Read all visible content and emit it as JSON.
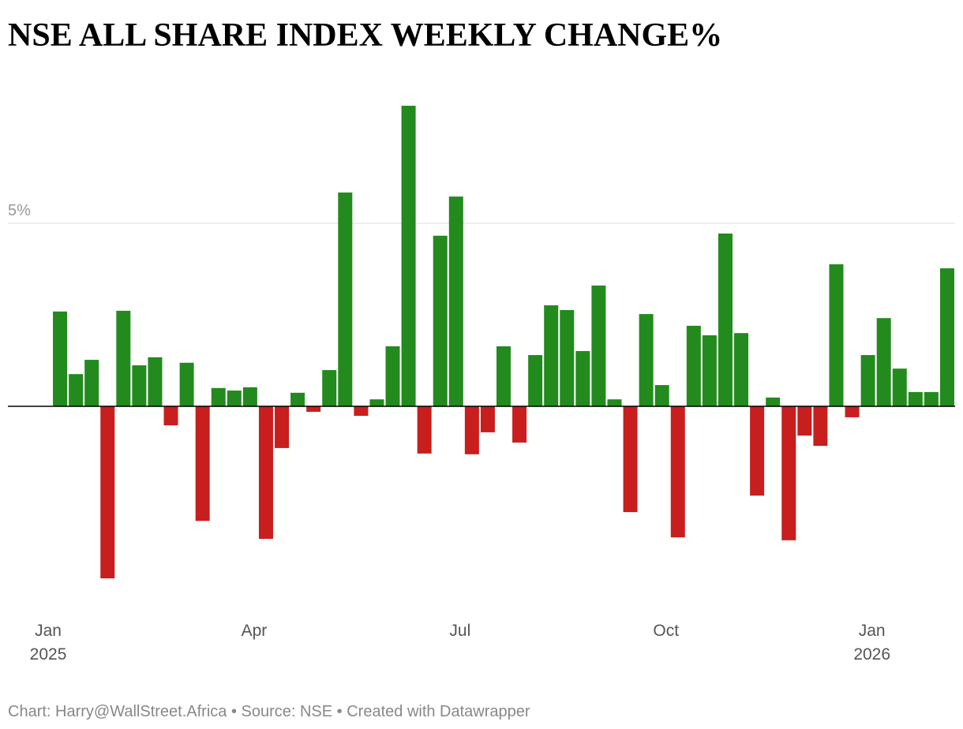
{
  "chart_data": {
    "type": "bar",
    "title": "NSE ALL SHARE INDEX  WEEKLY CHANGE%",
    "footer": "Chart: Harry@WallStreet.Africa • Source: NSE • Created with Datawrapper",
    "categories": [
      "Jan 2025",
      null,
      null,
      null,
      null,
      null,
      null,
      null,
      null,
      null,
      null,
      null,
      null,
      "Apr",
      null,
      null,
      null,
      null,
      null,
      null,
      null,
      null,
      null,
      null,
      null,
      null,
      "Jul",
      null,
      null,
      null,
      null,
      null,
      null,
      null,
      null,
      null,
      null,
      null,
      null,
      "Oct",
      null,
      null,
      null,
      null,
      null,
      null,
      null,
      null,
      null,
      null,
      null,
      null,
      "Jan 2026",
      null,
      null,
      null,
      null
    ],
    "values": [
      2.59,
      0.88,
      1.27,
      -4.7,
      2.61,
      1.12,
      1.34,
      -0.52,
      1.19,
      -3.13,
      0.5,
      0.43,
      0.52,
      -3.62,
      -1.14,
      0.37,
      -0.15,
      0.99,
      5.84,
      -0.26,
      0.19,
      1.64,
      8.21,
      -1.29,
      4.66,
      5.73,
      -1.31,
      -0.71,
      1.64,
      -0.99,
      1.4,
      2.76,
      2.63,
      1.51,
      3.3,
      0.19,
      -2.89,
      2.52,
      0.58,
      -3.58,
      2.2,
      1.94,
      4.72,
      2.0,
      -2.44,
      0.24,
      -3.66,
      -0.8,
      -1.08,
      3.88,
      -0.3,
      1.4,
      2.41,
      1.03,
      0.39,
      0.39,
      3.77
    ],
    "positive_color": "#238a1e",
    "negative_color": "#c81e1e",
    "ylim": [
      -5,
      8.5
    ],
    "yticks": [
      {
        "value": 5,
        "label": "5%"
      }
    ],
    "grid": true
  }
}
